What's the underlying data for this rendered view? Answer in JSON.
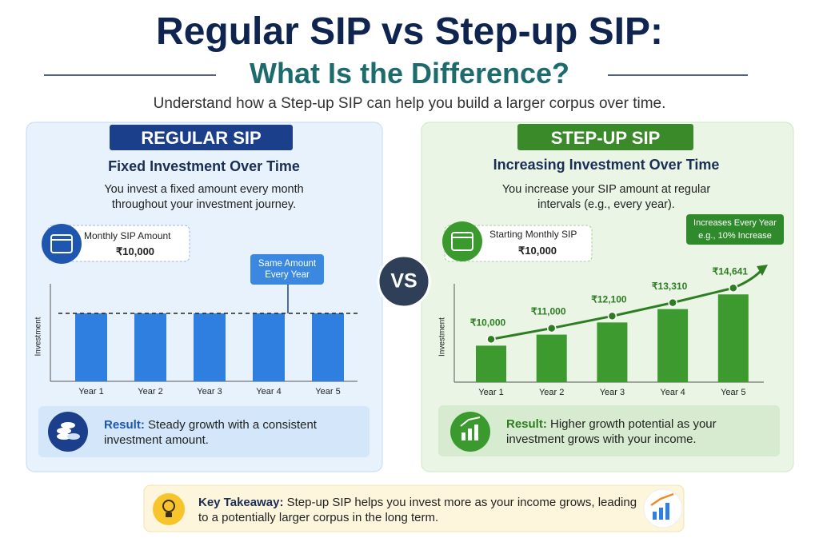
{
  "header": {
    "title": "Regular SIP vs Step-up SIP:",
    "subtitle": "What Is the Difference?",
    "intro": "Understand how a Step-up SIP can help you build a larger corpus over time."
  },
  "panels": [
    {
      "badge": "REGULAR SIP",
      "heading": "Fixed Investment Over Time",
      "description": "You invest a fixed amount every month throughout your investment journey.",
      "amount_label": "Monthly SIP Amount",
      "amount": "₹10,000",
      "callout": "Same Amount Every Year",
      "result_label": "Result:",
      "result_text": "Steady growth with a consistent investment amount."
    },
    {
      "badge": "STEP-UP SIP",
      "heading": "Increasing Investment Over Time",
      "description": "You increase your SIP amount at regular intervals (e.g., every year).",
      "amount_label": "Starting Monthly SIP",
      "amount": "₹10,000",
      "callout": "Increases Every Year",
      "callout_note": "e.g., 10% Increase",
      "result_label": "Result:",
      "result_text": "Higher growth potential as your investment grows with your income."
    }
  ],
  "vs": "VS",
  "takeaway": {
    "label": "Key Takeaway:",
    "text": "Step-up SIP helps you invest more as your income grows, leading to a potentially larger corpus in the long term."
  },
  "chart_data": [
    {
      "type": "bar",
      "y_label": "Investment",
      "categories": [
        "Year 1",
        "Year 2",
        "Year 3",
        "Year 4",
        "Year 5"
      ],
      "values": [
        10000,
        10000,
        10000,
        10000,
        10000
      ],
      "color": "#2f7fe0",
      "ylim": [
        0,
        14350
      ],
      "reference_line": true
    },
    {
      "type": "bar",
      "y_label": "Investment",
      "categories": [
        "Year 1",
        "Year 2",
        "Year 3",
        "Year 4",
        "Year 5"
      ],
      "values": [
        10000,
        11000,
        12100,
        13310,
        14641
      ],
      "value_labels": [
        "₹10,000",
        "₹11,000",
        "₹12,100",
        "₹13,310",
        "₹14,641"
      ],
      "color": "#3d9a2f",
      "ylim": [
        6700,
        15600
      ],
      "trend_line": true,
      "trend_color": "#2e7d22"
    }
  ]
}
